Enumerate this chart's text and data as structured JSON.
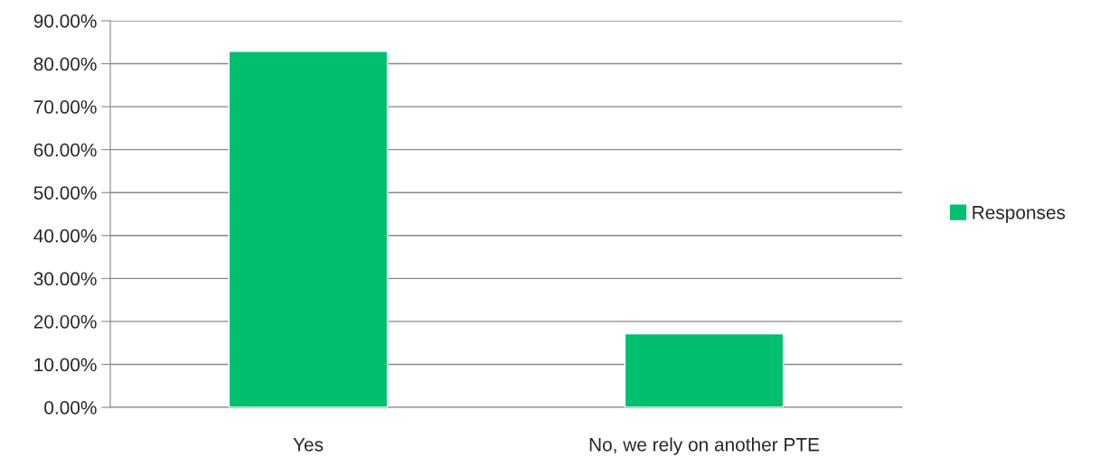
{
  "chart_data": {
    "type": "bar",
    "categories": [
      "Yes",
      "No, we rely on another PTE"
    ],
    "series": [
      {
        "name": "Responses",
        "color": "#00bf6f",
        "values": [
          82.9,
          17.1
        ]
      }
    ],
    "ylim": [
      0,
      90
    ],
    "yticks": [
      {
        "value": 0,
        "label": "0.00%"
      },
      {
        "value": 10,
        "label": "10.00%"
      },
      {
        "value": 20,
        "label": "20.00%"
      },
      {
        "value": 30,
        "label": "30.00%"
      },
      {
        "value": 40,
        "label": "40.00%"
      },
      {
        "value": 50,
        "label": "50.00%"
      },
      {
        "value": 60,
        "label": "60.00%"
      },
      {
        "value": 70,
        "label": "70.00%"
      },
      {
        "value": 80,
        "label": "80.00%"
      },
      {
        "value": 90,
        "label": "90.00%"
      }
    ],
    "grid": "y",
    "legend": "right"
  }
}
